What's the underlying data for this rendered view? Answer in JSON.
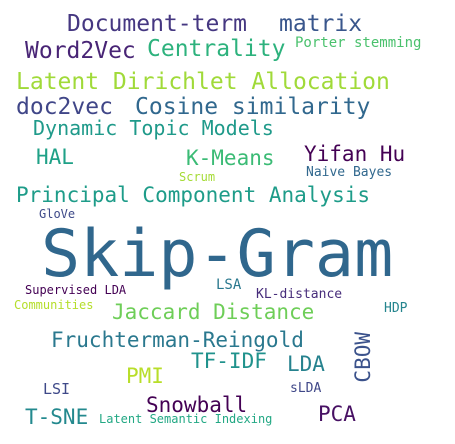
{
  "word_cloud": {
    "words": [
      {
        "text": "Document-term",
        "color": "#453781"
      },
      {
        "text": "matrix",
        "color": "#39568c"
      },
      {
        "text": "Word2Vec",
        "color": "#482475"
      },
      {
        "text": "Centrality",
        "color": "#2db27d"
      },
      {
        "text": "Porter stemming",
        "color": "#4ac16d"
      },
      {
        "text": "Latent Dirichlet Allocation",
        "color": "#a0da39"
      },
      {
        "text": "doc2vec",
        "color": "#404688"
      },
      {
        "text": "Cosine similarity",
        "color": "#31688e"
      },
      {
        "text": "Dynamic Topic Models",
        "color": "#1f9a8a"
      },
      {
        "text": "HAL",
        "color": "#1fa187"
      },
      {
        "text": "K-Means",
        "color": "#3bbb75"
      },
      {
        "text": "Yifan Hu",
        "color": "#440154"
      },
      {
        "text": "Scrum",
        "color": "#a5db36"
      },
      {
        "text": "Naive Bayes",
        "color": "#31688e"
      },
      {
        "text": "Principal Component Analysis",
        "color": "#1e9c89"
      },
      {
        "text": "GloVe",
        "color": "#3e4a89"
      },
      {
        "text": "Skip-Gram",
        "color": "#30678d"
      },
      {
        "text": "LSA",
        "color": "#2a788e"
      },
      {
        "text": "Supervised LDA",
        "color": "#440154"
      },
      {
        "text": "KL-distance",
        "color": "#472d7b"
      },
      {
        "text": "Communities",
        "color": "#b5de2b"
      },
      {
        "text": "Jaccard Distance",
        "color": "#6ece58"
      },
      {
        "text": "HDP",
        "color": "#25858e"
      },
      {
        "text": "Fruchterman-Reingold",
        "color": "#2a788e"
      },
      {
        "text": "CBOW",
        "color": "#3b528b"
      },
      {
        "text": "TF-IDF",
        "color": "#20928c"
      },
      {
        "text": "LDA",
        "color": "#26828e"
      },
      {
        "text": "PMI",
        "color": "#b8de29"
      },
      {
        "text": "LSI",
        "color": "#3e4989"
      },
      {
        "text": "sLDA",
        "color": "#3f4788"
      },
      {
        "text": "Snowball",
        "color": "#440154"
      },
      {
        "text": "PCA",
        "color": "#471063"
      },
      {
        "text": "T-SNE",
        "color": "#23898e"
      },
      {
        "text": "Latent Semantic Indexing",
        "color": "#22a884"
      }
    ]
  }
}
